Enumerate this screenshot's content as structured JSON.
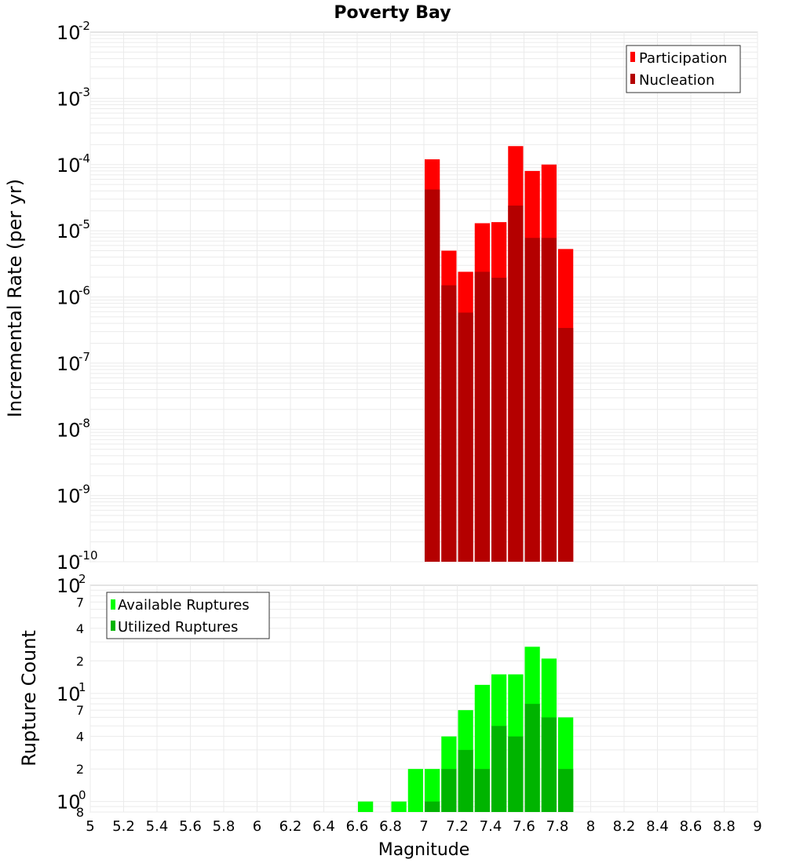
{
  "title": "Poverty Bay",
  "xlabel": "Magnitude",
  "x_ticks": [
    "5",
    "5.2",
    "5.4",
    "5.6",
    "5.8",
    "6",
    "6.2",
    "6.4",
    "6.6",
    "6.8",
    "7",
    "7.2",
    "7.4",
    "7.6",
    "7.8",
    "8",
    "8.2",
    "8.4",
    "8.6",
    "8.8",
    "9"
  ],
  "top": {
    "ylabel": "Incremental Rate (per yr)",
    "y_ticks": [
      {
        "base": "10",
        "exp": "-2"
      },
      {
        "base": "10",
        "exp": "-3"
      },
      {
        "base": "10",
        "exp": "-4"
      },
      {
        "base": "10",
        "exp": "-5"
      },
      {
        "base": "10",
        "exp": "-6"
      },
      {
        "base": "10",
        "exp": "-7"
      },
      {
        "base": "10",
        "exp": "-8"
      },
      {
        "base": "10",
        "exp": "-9"
      },
      {
        "base": "10",
        "exp": "-10"
      }
    ],
    "legend": [
      "Participation",
      "Nucleation"
    ]
  },
  "bottom": {
    "ylabel": "Rupture Count",
    "y_ticks_major": [
      {
        "base": "10",
        "exp": "2"
      },
      {
        "base": "10",
        "exp": "1"
      },
      {
        "base": "10",
        "exp": "0"
      }
    ],
    "y_ticks_minor": [
      "7",
      "4",
      "2",
      "7",
      "4",
      "2",
      "8"
    ],
    "legend": [
      "Available Ruptures",
      "Utilized Ruptures"
    ]
  },
  "colors": {
    "participation": "#ff0000",
    "nucleation": "#b40000",
    "available": "#00ff00",
    "utilized": "#00b400"
  },
  "chart_data": [
    {
      "type": "bar",
      "title": "Poverty Bay",
      "xlabel": "Magnitude",
      "ylabel": "Incremental Rate (per yr)",
      "xlim": [
        5,
        9
      ],
      "ylim": [
        1e-10,
        0.01
      ],
      "yscale": "log",
      "grid": true,
      "legend_position": "top-right",
      "x": [
        7.05,
        7.15,
        7.25,
        7.35,
        7.45,
        7.55,
        7.65,
        7.75,
        7.85
      ],
      "series": [
        {
          "name": "Participation",
          "values": [
            0.00012,
            5e-06,
            2.4e-06,
            1.3e-05,
            1.35e-05,
            0.00019,
            8e-05,
            0.0001,
            5.3e-06
          ]
        },
        {
          "name": "Nucleation",
          "values": [
            4.2e-05,
            1.5e-06,
            5.8e-07,
            2.4e-06,
            1.95e-06,
            2.4e-05,
            7.8e-06,
            7.8e-06,
            3.4e-07
          ]
        }
      ]
    },
    {
      "type": "bar",
      "xlabel": "Magnitude",
      "ylabel": "Rupture Count",
      "xlim": [
        5,
        9
      ],
      "ylim": [
        0.8,
        100
      ],
      "yscale": "log",
      "grid": true,
      "legend_position": "top-left",
      "x": [
        6.65,
        6.75,
        6.85,
        6.95,
        7.05,
        7.15,
        7.25,
        7.35,
        7.45,
        7.55,
        7.65,
        7.75,
        7.85
      ],
      "series": [
        {
          "name": "Available Ruptures",
          "values": [
            1,
            0,
            1,
            2,
            2,
            4,
            7,
            12,
            15,
            15,
            27,
            21,
            6
          ]
        },
        {
          "name": "Utilized Ruptures",
          "values": [
            0,
            0,
            0,
            0,
            1,
            2,
            3,
            2,
            5,
            4,
            8,
            6,
            2
          ]
        }
      ]
    }
  ]
}
